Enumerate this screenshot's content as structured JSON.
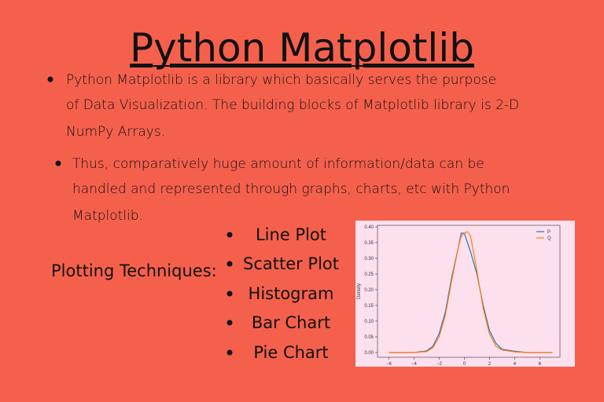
{
  "title": "Python Matplotlib",
  "bullets": [
    {
      "lines": [
        "Python Matplotlib is a library which basically serves the purpose",
        "of Data Visualization. The building blocks of Matplotlib library is 2-D",
        "NumPy Arrays."
      ]
    },
    {
      "lines": [
        "Thus, comparatively huge amount of information/data can be",
        "handled and represented through graphs, charts, etc with Python",
        "Matplotlib."
      ]
    }
  ],
  "techniques": {
    "label": "Plotting Techniques:",
    "items": [
      "Line Plot",
      "Scatter Plot",
      "Histogram",
      "Bar Chart",
      "Pie Chart"
    ]
  },
  "chart_data": {
    "type": "line",
    "ylabel": "Density",
    "x": [
      -6,
      -4,
      -3,
      -2.5,
      -2,
      -1.5,
      -1,
      -0.5,
      -0.25,
      0,
      0.25,
      0.5,
      1,
      1.5,
      2,
      2.5,
      3,
      4,
      5,
      7
    ],
    "series": [
      {
        "name": "P",
        "color": "#1f77b4",
        "values": [
          0,
          0,
          0.005,
          0.02,
          0.06,
          0.13,
          0.24,
          0.33,
          0.38,
          0.38,
          0.35,
          0.32,
          0.25,
          0.15,
          0.07,
          0.03,
          0.01,
          0.004,
          0,
          0
        ]
      },
      {
        "name": "Q",
        "color": "#ff7f0e",
        "values": [
          0,
          0,
          0.003,
          0.015,
          0.05,
          0.12,
          0.23,
          0.33,
          0.37,
          0.38,
          0.385,
          0.37,
          0.26,
          0.14,
          0.06,
          0.02,
          0.008,
          0.002,
          0,
          0
        ]
      }
    ],
    "xlim": [
      -6.9,
      7.6
    ],
    "ylim": [
      -0.015,
      0.405
    ],
    "xticks": [
      {
        "value": -6,
        "label": "−6"
      },
      {
        "value": -4,
        "label": "−4"
      },
      {
        "value": -2,
        "label": "−2"
      },
      0,
      2,
      4,
      6
    ],
    "yticks": [
      {
        "value": 0,
        "label": "0.00"
      },
      {
        "value": 0.05,
        "label": "0.05"
      },
      {
        "value": 0.1,
        "label": "0.10"
      },
      {
        "value": 0.15,
        "label": "0.15"
      },
      {
        "value": 0.2,
        "label": "0.20"
      },
      {
        "value": 0.25,
        "label": "0.25"
      },
      {
        "value": 0.3,
        "label": "0.30"
      },
      {
        "value": 0.35,
        "label": "0.35"
      },
      {
        "value": 0.4,
        "label": "0.40"
      }
    ],
    "legend": "upper right"
  }
}
